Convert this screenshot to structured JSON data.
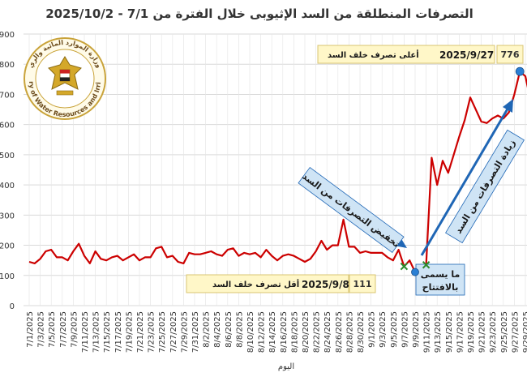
{
  "chart_data": {
    "type": "line",
    "title": "التصرفات المنطلقة من السد الإثيوبى خلال الفترة من 7/1 - 2025/10/2",
    "xlabel": "اليوم",
    "ylabel": "",
    "ylim": [
      0,
      900
    ],
    "yticks": [
      0,
      100,
      200,
      300,
      400,
      500,
      600,
      700,
      800,
      900
    ],
    "grid": true,
    "line_color": "#cc0000",
    "x_tick_labels": [
      "7/1/2025",
      "7/3/2025",
      "7/5/2025",
      "7/7/2025",
      "7/9/2025",
      "7/11/2025",
      "7/13/2025",
      "7/15/2025",
      "7/17/2025",
      "7/19/2025",
      "7/21/2025",
      "7/23/2025",
      "7/25/2025",
      "7/27/2025",
      "7/29/2025",
      "7/31/2025",
      "8/2/2025",
      "8/4/2025",
      "8/6/2025",
      "8/8/2025",
      "8/10/2025",
      "8/12/2025",
      "8/14/2025",
      "8/16/2025",
      "8/18/2025",
      "8/20/2025",
      "8/22/2025",
      "8/24/2025",
      "8/26/2025",
      "8/28/2025",
      "8/30/2025",
      "9/1/2025",
      "9/3/2025",
      "9/5/2025",
      "9/7/2025",
      "9/9/2025",
      "9/11/2025",
      "9/13/2025",
      "9/15/2025",
      "9/17/2025",
      "9/19/2025",
      "9/21/2025",
      "9/23/2025",
      "9/25/2025",
      "9/27/2025",
      "9/29/2025"
    ],
    "series": [
      {
        "values": [
          145,
          140,
          155,
          180,
          185,
          160,
          160,
          150,
          180,
          205,
          165,
          140,
          180,
          155,
          150,
          160,
          165,
          150,
          160,
          170,
          150,
          160,
          160,
          190,
          195,
          160,
          165,
          145,
          140,
          175,
          170,
          170,
          175,
          180,
          170,
          165,
          185,
          190,
          165,
          175,
          170,
          175,
          160,
          185,
          165,
          150,
          165,
          170,
          165,
          155,
          145,
          155,
          180,
          215,
          185,
          200,
          200,
          285,
          195,
          195,
          175,
          180,
          175,
          175,
          175,
          160,
          150,
          185,
          130,
          150,
          111,
          135,
          135,
          490,
          400,
          480,
          440,
          500,
          560,
          615,
          690,
          650,
          610,
          605,
          620,
          630,
          620,
          640,
          700,
          776,
          760,
          675,
          630
        ],
        "color": "#cc0000"
      }
    ],
    "annotations": {
      "max_note": "أعلى تصرف خلف السد",
      "max_date": "2025/9/27",
      "max_value": "776",
      "min_note": "أقل تصرف خلف السد",
      "min_date": "2025/9/8",
      "min_value": "111",
      "decrease_label": "تخفيض التصرفات من السد",
      "increase_label": "زيادة التصرفات من السد",
      "opening_label_line1": "ما يسمى",
      "opening_label_line2": "بالافتتاح"
    },
    "seal": {
      "text_en": "Ministry of Water Resources and Irrigation",
      "text_ar": "وزارة الموارد المائية والري"
    }
  }
}
